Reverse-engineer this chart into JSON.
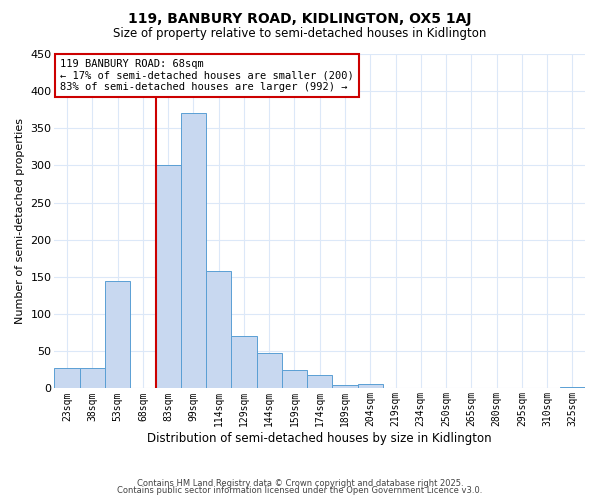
{
  "title": "119, BANBURY ROAD, KIDLINGTON, OX5 1AJ",
  "subtitle": "Size of property relative to semi-detached houses in Kidlington",
  "xlabel": "Distribution of semi-detached houses by size in Kidlington",
  "ylabel": "Number of semi-detached properties",
  "bar_labels": [
    "23sqm",
    "38sqm",
    "53sqm",
    "68sqm",
    "83sqm",
    "99sqm",
    "114sqm",
    "129sqm",
    "144sqm",
    "159sqm",
    "174sqm",
    "189sqm",
    "204sqm",
    "219sqm",
    "234sqm",
    "250sqm",
    "265sqm",
    "280sqm",
    "295sqm",
    "310sqm",
    "325sqm"
  ],
  "bar_values": [
    27,
    28,
    145,
    0,
    300,
    370,
    158,
    70,
    48,
    25,
    18,
    5,
    6,
    0,
    0,
    0,
    0,
    0,
    0,
    0,
    2
  ],
  "bar_color": "#c8d8f0",
  "bar_edge_color": "#5a9fd4",
  "vline_index": 3.5,
  "vline_color": "#cc0000",
  "ylim": [
    0,
    450
  ],
  "yticks": [
    0,
    50,
    100,
    150,
    200,
    250,
    300,
    350,
    400,
    450
  ],
  "annotation_line1": "119 BANBURY ROAD: 68sqm",
  "annotation_line2": "← 17% of semi-detached houses are smaller (200)",
  "annotation_line3": "83% of semi-detached houses are larger (992) →",
  "annotation_box_color": "#ffffff",
  "annotation_box_edge": "#cc0000",
  "footer1": "Contains HM Land Registry data © Crown copyright and database right 2025.",
  "footer2": "Contains public sector information licensed under the Open Government Licence v3.0.",
  "bg_color": "#ffffff",
  "grid_color": "#c8d8f0",
  "grid_color2": "#dce8f8"
}
